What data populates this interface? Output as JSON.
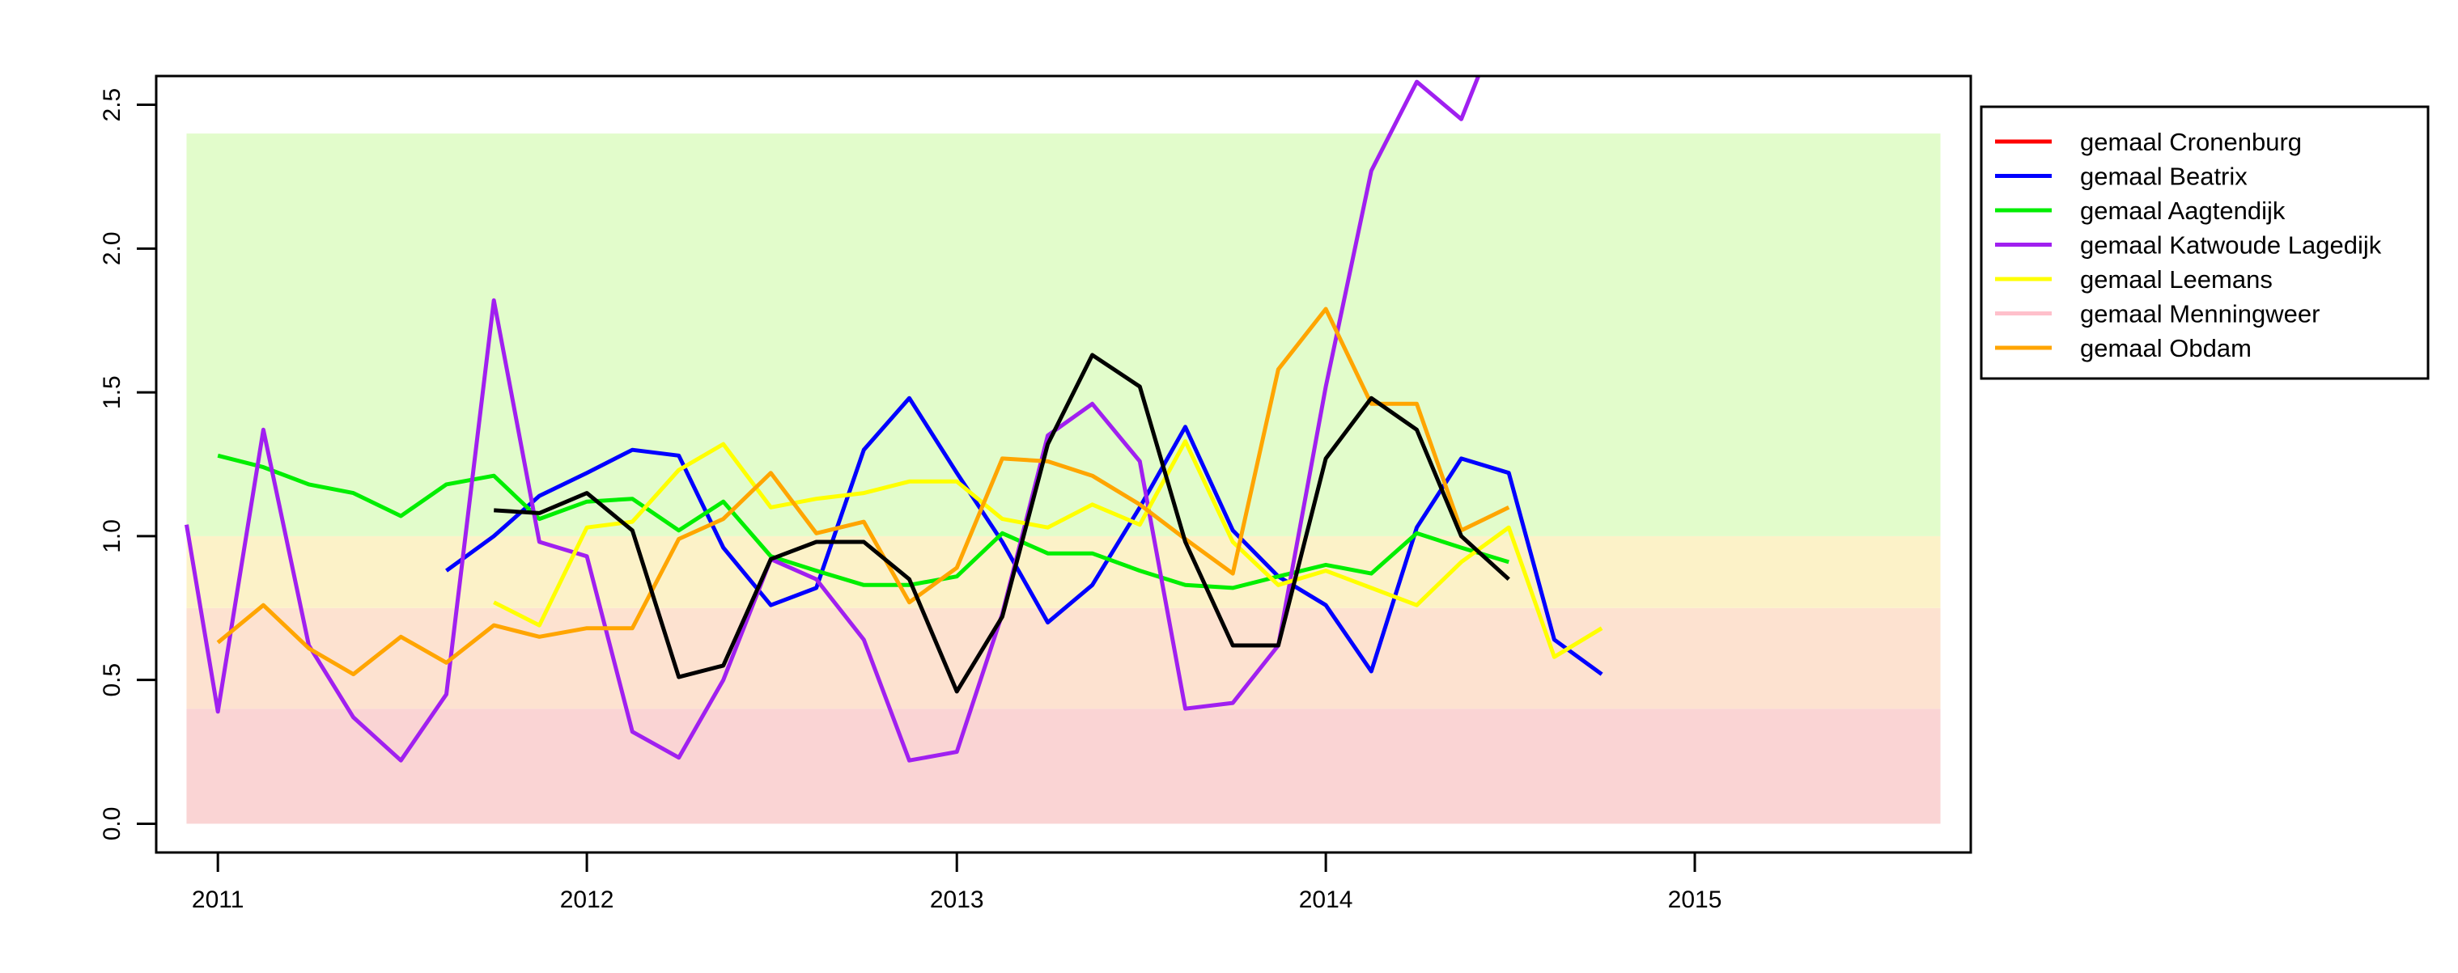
{
  "chart_data": {
    "type": "line",
    "title": "",
    "xlabel": "",
    "ylabel": "",
    "xlim": [
      "2010-11-01",
      "2015-10-01"
    ],
    "ylim": [
      -0.1,
      2.6
    ],
    "x_ticks": [
      {
        "value": "2011-01-01",
        "label": "2011"
      },
      {
        "value": "2012-01-01",
        "label": "2012"
      },
      {
        "value": "2013-01-01",
        "label": "2013"
      },
      {
        "value": "2014-01-01",
        "label": "2014"
      },
      {
        "value": "2015-01-01",
        "label": "2015"
      }
    ],
    "y_ticks": [
      {
        "value": 0.0,
        "label": "0.0"
      },
      {
        "value": 0.5,
        "label": "0.5"
      },
      {
        "value": 1.0,
        "label": "1.0"
      },
      {
        "value": 1.5,
        "label": "1.5"
      },
      {
        "value": 2.0,
        "label": "2.0"
      },
      {
        "value": 2.5,
        "label": "2.5"
      }
    ],
    "background_bands": [
      {
        "from": 0.0,
        "to": 0.4,
        "color": "#fad4d4"
      },
      {
        "from": 0.4,
        "to": 0.75,
        "color": "#fde2d0"
      },
      {
        "from": 0.75,
        "to": 1.0,
        "color": "#fcf2c8"
      },
      {
        "from": 1.0,
        "to": 2.4,
        "color": "#e2fccb"
      }
    ],
    "band_x_range": [
      "2010-12-01",
      "2015-09-01"
    ],
    "legend_position": "right",
    "legend": [
      {
        "label": "gemaal Cronenburg",
        "color": "#ff0000"
      },
      {
        "label": "gemaal Beatrix",
        "color": "#0000ff"
      },
      {
        "label": "gemaal Aagtendijk",
        "color": "#00ee00"
      },
      {
        "label": "gemaal Katwoude Lagedijk",
        "color": "#a020f0"
      },
      {
        "label": "gemaal Leemans",
        "color": "#ffff00"
      },
      {
        "label": "gemaal Menningweer",
        "color": "#ffc0cb"
      },
      {
        "label": "gemaal Obdam",
        "color": "#ffa500"
      }
    ],
    "series": [
      {
        "name": "gemaal Beatrix",
        "color": "#0000ff",
        "points": [
          [
            "2011-08-15",
            0.88
          ],
          [
            "2011-10-01",
            1.0
          ],
          [
            "2011-11-15",
            1.14
          ],
          [
            "2012-01-01",
            1.22
          ],
          [
            "2012-02-15",
            1.3
          ],
          [
            "2012-04-01",
            1.28
          ],
          [
            "2012-05-15",
            0.96
          ],
          [
            "2012-07-01",
            0.76
          ],
          [
            "2012-08-15",
            0.82
          ],
          [
            "2012-10-01",
            1.3
          ],
          [
            "2012-11-15",
            1.48
          ],
          [
            "2013-01-01",
            1.22
          ],
          [
            "2013-02-15",
            0.98
          ],
          [
            "2013-04-01",
            0.7
          ],
          [
            "2013-05-15",
            0.83
          ],
          [
            "2013-07-01",
            1.1
          ],
          [
            "2013-08-15",
            1.38
          ],
          [
            "2013-10-01",
            1.02
          ],
          [
            "2013-11-15",
            0.86
          ],
          [
            "2014-01-01",
            0.76
          ],
          [
            "2014-02-15",
            0.53
          ],
          [
            "2014-04-01",
            1.03
          ],
          [
            "2014-05-15",
            1.27
          ],
          [
            "2014-07-01",
            1.22
          ],
          [
            "2014-08-15",
            0.64
          ],
          [
            "2014-10-01",
            0.52
          ]
        ]
      },
      {
        "name": "gemaal Aagtendijk",
        "color": "#00ee00",
        "points": [
          [
            "2011-01-01",
            1.28
          ],
          [
            "2011-02-15",
            1.24
          ],
          [
            "2011-04-01",
            1.18
          ],
          [
            "2011-05-15",
            1.15
          ],
          [
            "2011-07-01",
            1.07
          ],
          [
            "2011-08-15",
            1.18
          ],
          [
            "2011-10-01",
            1.21
          ],
          [
            "2011-11-15",
            1.06
          ],
          [
            "2012-01-01",
            1.12
          ],
          [
            "2012-02-15",
            1.13
          ],
          [
            "2012-04-01",
            1.02
          ],
          [
            "2012-05-15",
            1.12
          ],
          [
            "2012-07-01",
            0.93
          ],
          [
            "2012-08-15",
            0.88
          ],
          [
            "2012-10-01",
            0.83
          ],
          [
            "2012-11-15",
            0.83
          ],
          [
            "2013-01-01",
            0.86
          ],
          [
            "2013-02-15",
            1.01
          ],
          [
            "2013-04-01",
            0.94
          ],
          [
            "2013-05-15",
            0.94
          ],
          [
            "2013-07-01",
            0.88
          ],
          [
            "2013-08-15",
            0.83
          ],
          [
            "2013-10-01",
            0.82
          ],
          [
            "2013-11-15",
            0.86
          ],
          [
            "2014-01-01",
            0.9
          ],
          [
            "2014-02-15",
            0.87
          ],
          [
            "2014-04-01",
            1.01
          ],
          [
            "2014-05-15",
            0.96
          ],
          [
            "2014-07-01",
            0.91
          ]
        ]
      },
      {
        "name": "gemaal Katwoude Lagedijk",
        "color": "#a020f0",
        "points": [
          [
            "2010-12-01",
            1.04
          ],
          [
            "2011-01-01",
            0.39
          ],
          [
            "2011-02-15",
            1.37
          ],
          [
            "2011-04-01",
            0.62
          ],
          [
            "2011-05-15",
            0.37
          ],
          [
            "2011-07-01",
            0.22
          ],
          [
            "2011-08-15",
            0.45
          ],
          [
            "2011-10-01",
            1.82
          ],
          [
            "2011-11-15",
            0.98
          ],
          [
            "2012-01-01",
            0.93
          ],
          [
            "2012-02-15",
            0.32
          ],
          [
            "2012-04-01",
            0.23
          ],
          [
            "2012-05-15",
            0.5
          ],
          [
            "2012-07-01",
            0.92
          ],
          [
            "2012-08-15",
            0.85
          ],
          [
            "2012-10-01",
            0.64
          ],
          [
            "2012-11-15",
            0.22
          ],
          [
            "2013-01-01",
            0.25
          ],
          [
            "2013-02-15",
            0.73
          ],
          [
            "2013-04-01",
            1.35
          ],
          [
            "2013-05-15",
            1.46
          ],
          [
            "2013-07-01",
            1.26
          ],
          [
            "2013-08-15",
            0.4
          ],
          [
            "2013-10-01",
            0.42
          ],
          [
            "2013-11-15",
            0.62
          ],
          [
            "2014-01-01",
            1.52
          ],
          [
            "2014-02-15",
            2.27
          ],
          [
            "2014-04-01",
            2.58
          ],
          [
            "2014-05-15",
            2.45
          ],
          [
            "2014-06-01",
            2.6
          ]
        ]
      },
      {
        "name": "gemaal Leemans",
        "color": "#ffff00",
        "points": [
          [
            "2011-10-01",
            0.77
          ],
          [
            "2011-11-15",
            0.69
          ],
          [
            "2012-01-01",
            1.03
          ],
          [
            "2012-02-15",
            1.05
          ],
          [
            "2012-04-01",
            1.23
          ],
          [
            "2012-05-15",
            1.32
          ],
          [
            "2012-07-01",
            1.1
          ],
          [
            "2012-08-15",
            1.13
          ],
          [
            "2012-10-01",
            1.15
          ],
          [
            "2012-11-15",
            1.19
          ],
          [
            "2013-01-01",
            1.19
          ],
          [
            "2013-02-15",
            1.06
          ],
          [
            "2013-04-01",
            1.03
          ],
          [
            "2013-05-15",
            1.11
          ],
          [
            "2013-07-01",
            1.04
          ],
          [
            "2013-08-15",
            1.33
          ],
          [
            "2013-10-01",
            0.98
          ],
          [
            "2013-11-15",
            0.83
          ],
          [
            "2014-01-01",
            0.88
          ],
          [
            "2014-02-15",
            0.82
          ],
          [
            "2014-04-01",
            0.76
          ],
          [
            "2014-05-15",
            0.91
          ],
          [
            "2014-07-01",
            1.03
          ],
          [
            "2014-08-15",
            0.58
          ],
          [
            "2014-10-01",
            0.68
          ]
        ]
      },
      {
        "name": "gemaal Obdam",
        "color": "#ffa500",
        "points": [
          [
            "2011-01-01",
            0.63
          ],
          [
            "2011-02-15",
            0.76
          ],
          [
            "2011-04-01",
            0.61
          ],
          [
            "2011-05-15",
            0.52
          ],
          [
            "2011-07-01",
            0.65
          ],
          [
            "2011-08-15",
            0.56
          ],
          [
            "2011-10-01",
            0.69
          ],
          [
            "2011-11-15",
            0.65
          ],
          [
            "2012-01-01",
            0.68
          ],
          [
            "2012-02-15",
            0.68
          ],
          [
            "2012-04-01",
            0.99
          ],
          [
            "2012-05-15",
            1.06
          ],
          [
            "2012-07-01",
            1.22
          ],
          [
            "2012-08-15",
            1.01
          ],
          [
            "2012-10-01",
            1.05
          ],
          [
            "2012-11-15",
            0.77
          ],
          [
            "2013-01-01",
            0.89
          ],
          [
            "2013-02-15",
            1.27
          ],
          [
            "2013-04-01",
            1.26
          ],
          [
            "2013-05-15",
            1.21
          ],
          [
            "2013-07-01",
            1.11
          ],
          [
            "2013-08-15",
            0.99
          ],
          [
            "2013-10-01",
            0.87
          ],
          [
            "2013-11-15",
            1.58
          ],
          [
            "2014-01-01",
            1.79
          ],
          [
            "2014-02-15",
            1.46
          ],
          [
            "2014-04-01",
            1.46
          ],
          [
            "2014-05-15",
            1.02
          ],
          [
            "2014-07-01",
            1.1
          ]
        ]
      },
      {
        "name": "",
        "color": "#000000",
        "points": [
          [
            "2011-10-01",
            1.09
          ],
          [
            "2011-11-15",
            1.08
          ],
          [
            "2012-01-01",
            1.15
          ],
          [
            "2012-02-15",
            1.02
          ],
          [
            "2012-04-01",
            0.51
          ],
          [
            "2012-05-15",
            0.55
          ],
          [
            "2012-07-01",
            0.92
          ],
          [
            "2012-08-15",
            0.98
          ],
          [
            "2012-10-01",
            0.98
          ],
          [
            "2012-11-15",
            0.85
          ],
          [
            "2013-01-01",
            0.46
          ],
          [
            "2013-02-15",
            0.72
          ],
          [
            "2013-04-01",
            1.32
          ],
          [
            "2013-05-15",
            1.63
          ],
          [
            "2013-07-01",
            1.52
          ],
          [
            "2013-08-15",
            0.98
          ],
          [
            "2013-10-01",
            0.62
          ],
          [
            "2013-11-15",
            0.62
          ],
          [
            "2014-01-01",
            1.27
          ],
          [
            "2014-02-15",
            1.48
          ],
          [
            "2014-04-01",
            1.37
          ],
          [
            "2014-05-15",
            1.0
          ],
          [
            "2014-07-01",
            0.85
          ]
        ]
      }
    ]
  }
}
